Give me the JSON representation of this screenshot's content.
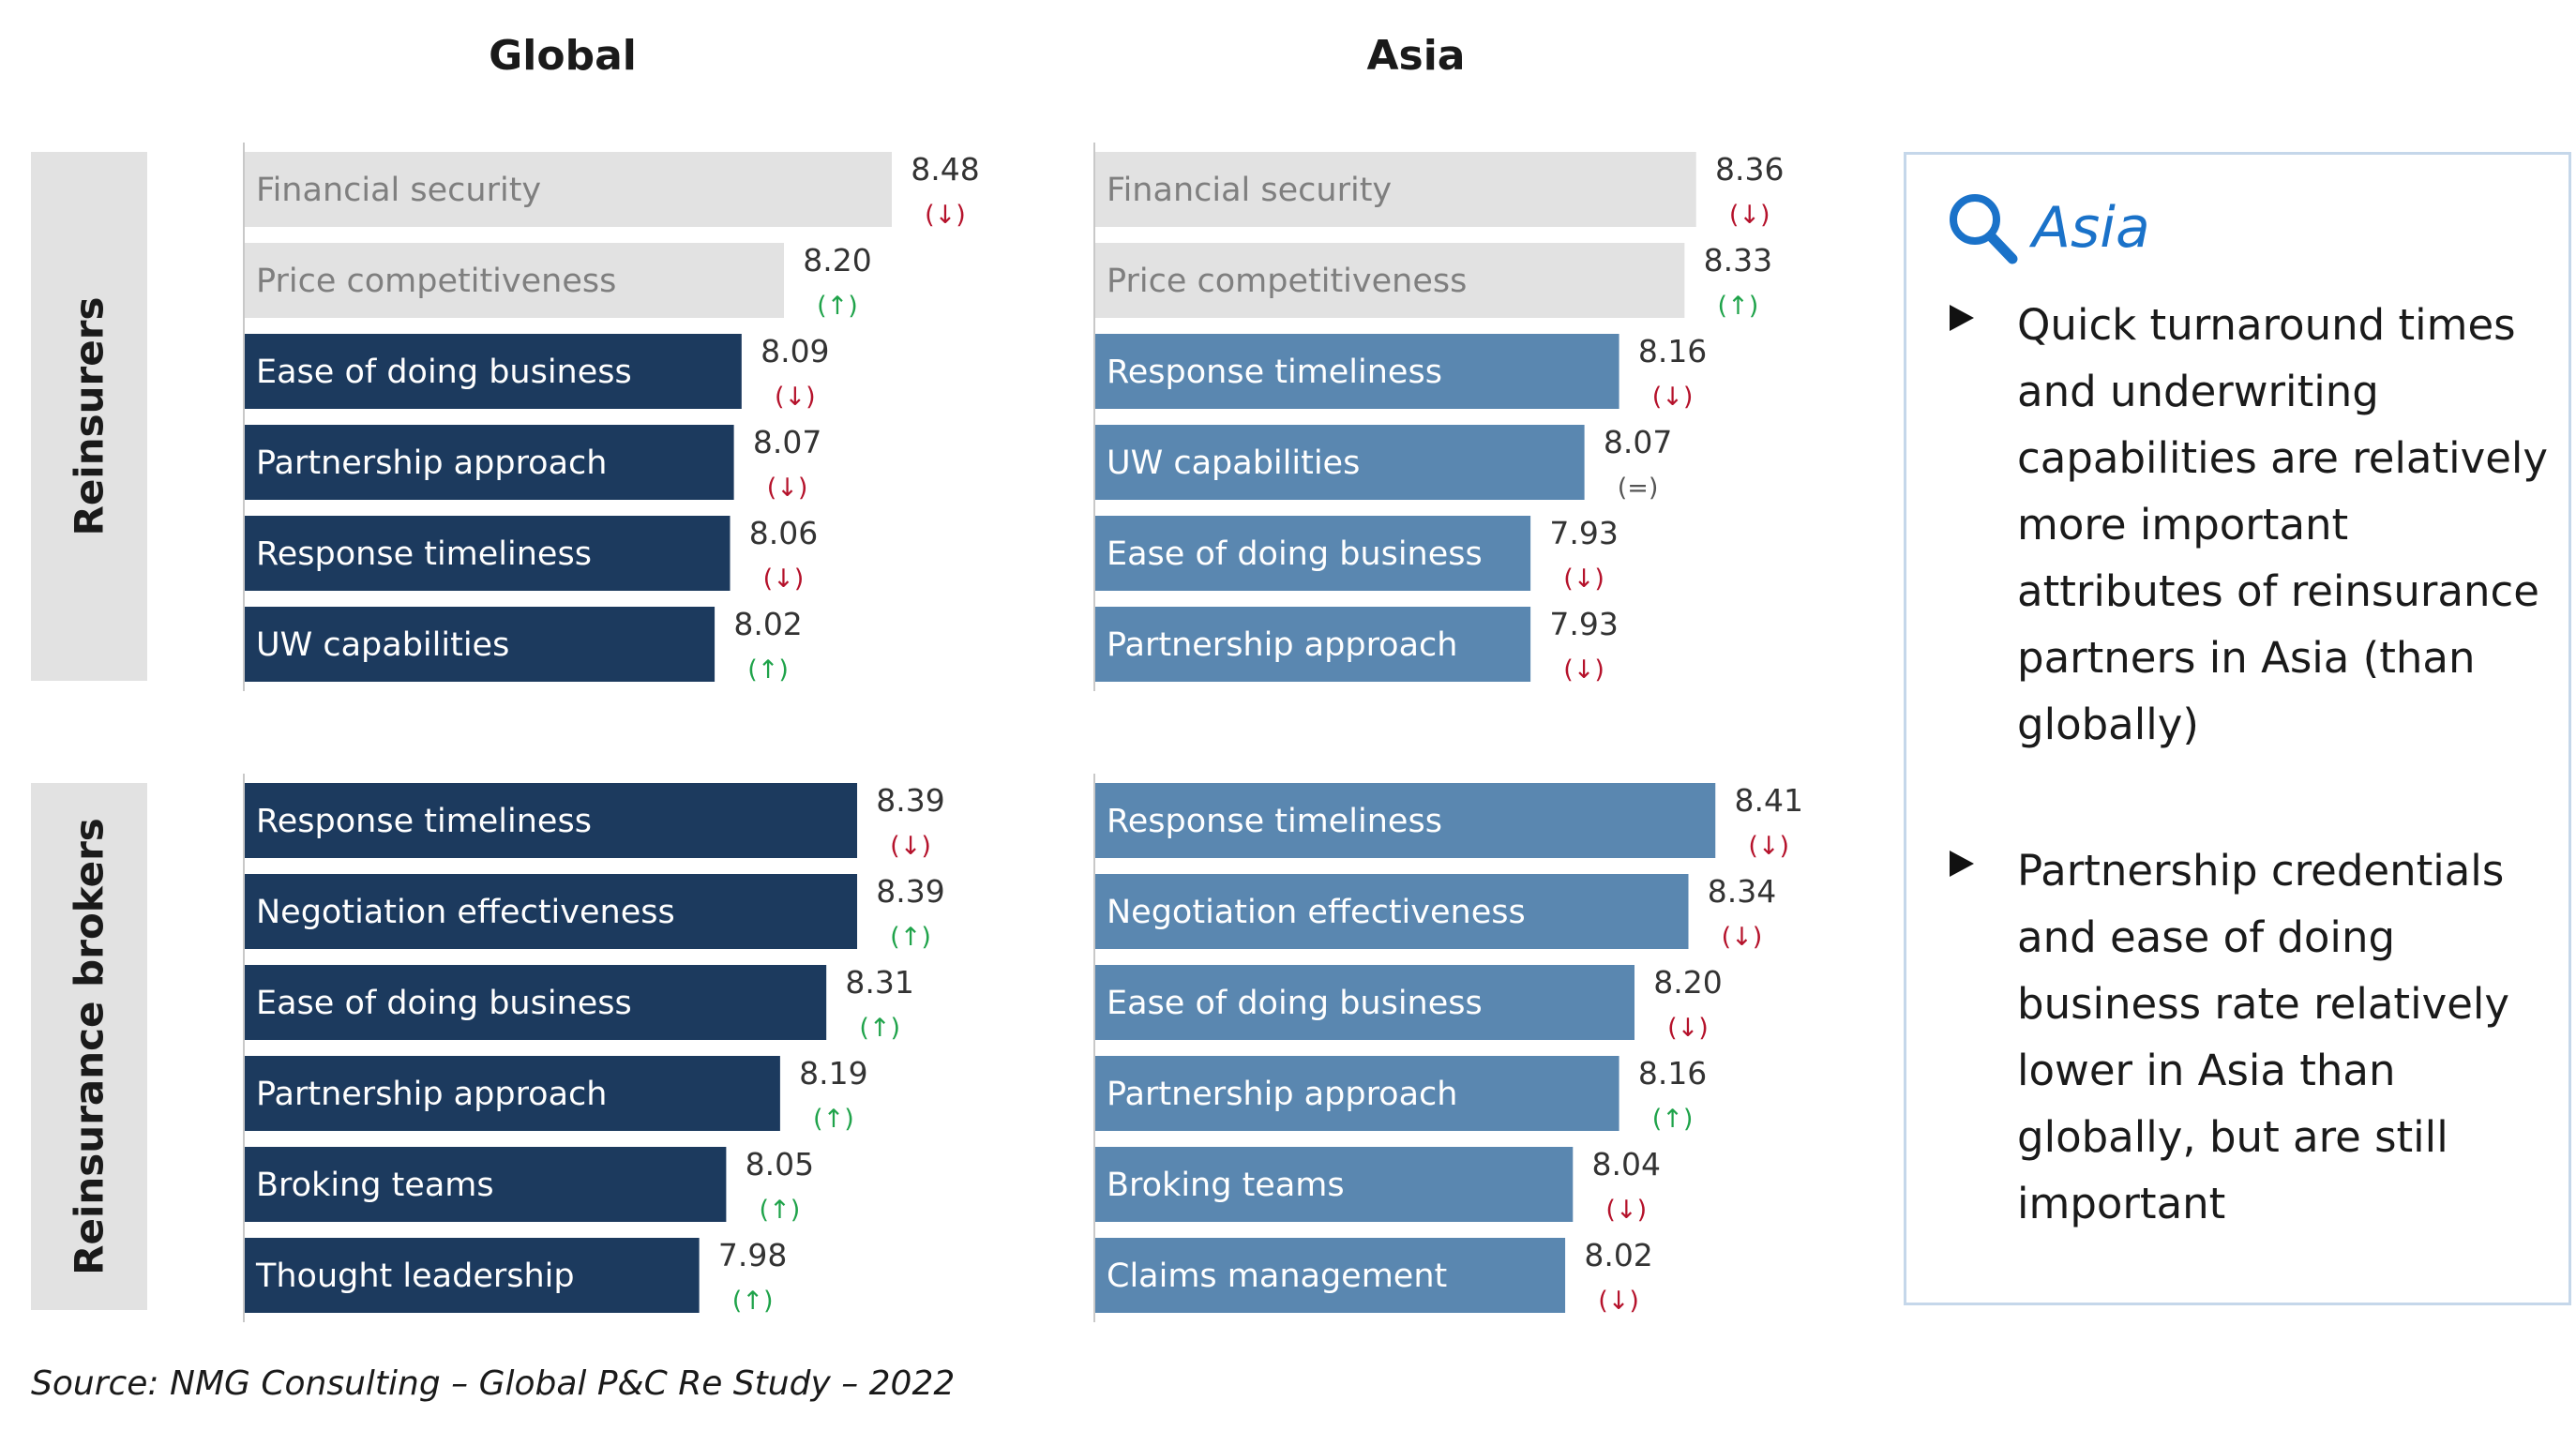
{
  "columns": {
    "global": "Global",
    "asia": "Asia"
  },
  "rows": {
    "reinsurers": "Reinsurers",
    "brokers": "Reinsurance brokers"
  },
  "colors": {
    "highlight_bar": "#e2e2e2",
    "highlight_text": "#7f7f7f",
    "global_bar": "#1c3a5e",
    "asia_bar": "#5a87b0",
    "up": "#1fa34a",
    "down": "#b5122b",
    "neutral": "#555555"
  },
  "chart_data": [
    {
      "type": "bar",
      "orientation": "horizontal",
      "panel": "Global / Reinsurers",
      "xlim": [
        6.8,
        8.48
      ],
      "categories": [
        "Financial security",
        "Price competitiveness",
        "Ease of doing business",
        "Partnership approach",
        "Response timeliness",
        "UW capabilities"
      ],
      "values": [
        8.48,
        8.2,
        8.09,
        8.07,
        8.06,
        8.02
      ],
      "value_labels": [
        "8.48",
        "8.20",
        "8.09",
        "8.07",
        "8.06",
        "8.02"
      ],
      "trends": [
        "(↓)",
        "(↑)",
        "(↓)",
        "(↓)",
        "(↓)",
        "(↑)"
      ],
      "highlighted": [
        true,
        true,
        false,
        false,
        false,
        false
      ]
    },
    {
      "type": "bar",
      "orientation": "horizontal",
      "panel": "Asia / Reinsurers",
      "xlim": [
        6.8,
        8.48
      ],
      "categories": [
        "Financial security",
        "Price competitiveness",
        "Response timeliness",
        "UW capabilities",
        "Ease of doing business",
        "Partnership approach"
      ],
      "values": [
        8.36,
        8.33,
        8.16,
        8.07,
        7.93,
        7.93
      ],
      "value_labels": [
        "8.36",
        "8.33",
        "8.16",
        "8.07",
        "7.93",
        "7.93"
      ],
      "trends": [
        "(↓)",
        "(↑)",
        "(↓)",
        "(=)",
        "(↓)",
        "(↓)"
      ],
      "highlighted": [
        true,
        true,
        false,
        false,
        false,
        false
      ]
    },
    {
      "type": "bar",
      "orientation": "horizontal",
      "panel": "Global / Reinsurance brokers",
      "xlim": [
        6.8,
        8.48
      ],
      "categories": [
        "Response timeliness",
        "Negotiation effectiveness",
        "Ease of doing business",
        "Partnership approach",
        "Broking teams",
        "Thought leadership"
      ],
      "values": [
        8.39,
        8.39,
        8.31,
        8.19,
        8.05,
        7.98
      ],
      "value_labels": [
        "8.39",
        "8.39",
        "8.31",
        "8.19",
        "8.05",
        "7.98"
      ],
      "trends": [
        "(↓)",
        "(↑)",
        "(↑)",
        "(↑)",
        "(↑)",
        "(↑)"
      ],
      "highlighted": [
        false,
        false,
        false,
        false,
        false,
        false
      ]
    },
    {
      "type": "bar",
      "orientation": "horizontal",
      "panel": "Asia / Reinsurance brokers",
      "xlim": [
        6.8,
        8.48
      ],
      "categories": [
        "Response timeliness",
        "Negotiation effectiveness",
        "Ease of doing business",
        "Partnership approach",
        "Broking teams",
        "Claims management"
      ],
      "values": [
        8.41,
        8.34,
        8.2,
        8.16,
        8.04,
        8.02
      ],
      "value_labels": [
        "8.41",
        "8.34",
        "8.20",
        "8.16",
        "8.04",
        "8.02"
      ],
      "trends": [
        "(↓)",
        "(↓)",
        "(↓)",
        "(↑)",
        "(↓)",
        "(↓)"
      ],
      "highlighted": [
        false,
        false,
        false,
        false,
        false,
        false
      ]
    }
  ],
  "panel": {
    "title": "Asia",
    "icon": "magnifier-icon",
    "bullets": [
      "Quick turnaround times and underwriting capabilities are relatively more important attributes of reinsurance partners in Asia (than globally)",
      "Partnership credentials and ease of doing business rate relatively lower in Asia than globally, but are still important"
    ]
  },
  "source": "Source: NMG Consulting – Global P&C Re Study – 2022"
}
